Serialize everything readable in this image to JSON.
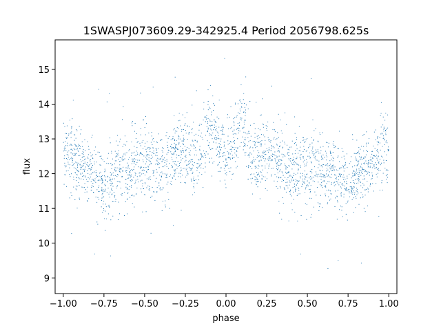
{
  "chart_data": {
    "type": "scatter",
    "title": "1SWASPJ073609.29-342925.4 Period 2056798.625s",
    "xlabel": "phase",
    "ylabel": "flux",
    "xlim": [
      -1.05,
      1.05
    ],
    "ylim": [
      8.55,
      15.85
    ],
    "xticks": [
      -1.0,
      -0.75,
      -0.5,
      -0.25,
      0.0,
      0.25,
      0.5,
      0.75,
      1.0
    ],
    "xtick_labels": [
      "−1.00",
      "−0.75",
      "−0.50",
      "−0.25",
      "0.00",
      "0.25",
      "0.50",
      "0.75",
      "1.00"
    ],
    "yticks": [
      9,
      10,
      11,
      12,
      13,
      14,
      15
    ],
    "ytick_labels": [
      "9",
      "10",
      "11",
      "12",
      "13",
      "14",
      "15"
    ],
    "grid": false,
    "legend": "none",
    "marker_color": "#1f77b4",
    "x_range_points": [
      -1.0,
      1.0
    ],
    "folded_phase_curve": [
      {
        "phase": 0.0,
        "flux": 12.5,
        "spread": 1.6
      },
      {
        "phase": 0.05,
        "flux": 12.9,
        "spread": 1.7
      },
      {
        "phase": 0.1,
        "flux": 13.5,
        "spread": 2.2
      },
      {
        "phase": 0.15,
        "flux": 12.5,
        "spread": 1.7
      },
      {
        "phase": 0.2,
        "flux": 12.3,
        "spread": 1.7
      },
      {
        "phase": 0.25,
        "flux": 12.7,
        "spread": 1.7
      },
      {
        "phase": 0.3,
        "flux": 12.6,
        "spread": 1.8
      },
      {
        "phase": 0.35,
        "flux": 12.3,
        "spread": 1.9
      },
      {
        "phase": 0.4,
        "flux": 12.0,
        "spread": 2.0
      },
      {
        "phase": 0.45,
        "flux": 12.3,
        "spread": 2.2
      },
      {
        "phase": 0.5,
        "flux": 12.0,
        "spread": 2.0
      },
      {
        "phase": 0.55,
        "flux": 12.3,
        "spread": 1.9
      },
      {
        "phase": 0.6,
        "flux": 12.0,
        "spread": 1.8
      },
      {
        "phase": 0.65,
        "flux": 12.2,
        "spread": 1.8
      },
      {
        "phase": 0.7,
        "flux": 11.8,
        "spread": 1.8
      },
      {
        "phase": 0.75,
        "flux": 11.6,
        "spread": 1.6
      },
      {
        "phase": 0.8,
        "flux": 12.0,
        "spread": 1.6
      },
      {
        "phase": 0.85,
        "flux": 12.0,
        "spread": 1.6
      },
      {
        "phase": 0.9,
        "flux": 12.4,
        "spread": 1.8
      },
      {
        "phase": 0.95,
        "flux": 12.6,
        "spread": 1.9
      },
      {
        "phase": 1.0,
        "flux": 12.6,
        "spread": 1.8
      }
    ]
  }
}
